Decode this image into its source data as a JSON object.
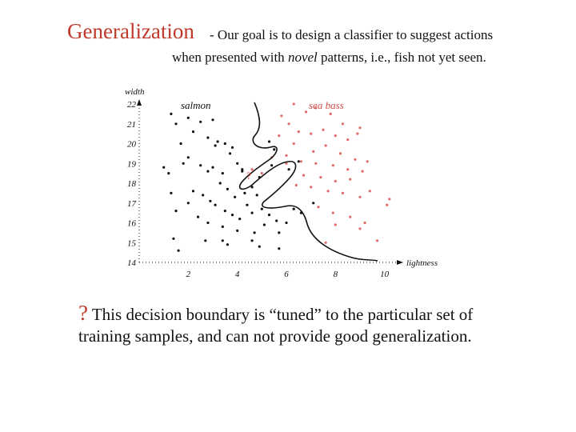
{
  "slide": {
    "title": "Generalization",
    "subtitle_line1": "- Our goal is to design a classifier to suggest actions",
    "subtitle_line2_pre": "when presented with ",
    "subtitle_line2_em": "novel",
    "subtitle_line2_post": " patterns, i.e., fish not yet seen.",
    "caption_mark": "?",
    "caption": " This decision boundary is “tuned” to the particular set of training samples, and can not provide good generalization."
  },
  "colors": {
    "title": "#c0392b",
    "seabass": "#e06b6b",
    "salmon": "#111111",
    "boundary": "#111111"
  },
  "chart_data": {
    "type": "scatter",
    "xlabel": "lightness",
    "ylabel": "width",
    "xlim": [
      0,
      10.5
    ],
    "ylim": [
      14,
      22
    ],
    "x_ticks": [
      "2",
      "4",
      "6",
      "8",
      "10"
    ],
    "y_ticks": [
      "14",
      "15",
      "16",
      "17",
      "18",
      "19",
      "20",
      "21",
      "22"
    ],
    "series": [
      {
        "name": "salmon",
        "color": "#111111",
        "points": [
          [
            1.3,
            21.5
          ],
          [
            1.5,
            21.0
          ],
          [
            1.7,
            20.0
          ],
          [
            2.0,
            21.3
          ],
          [
            2.2,
            20.6
          ],
          [
            2.5,
            21.1
          ],
          [
            3.0,
            21.2
          ],
          [
            2.8,
            20.3
          ],
          [
            3.1,
            19.9
          ],
          [
            3.2,
            20.1
          ],
          [
            3.5,
            20.0
          ],
          [
            3.8,
            19.8
          ],
          [
            1.8,
            19.0
          ],
          [
            2.0,
            19.3
          ],
          [
            2.5,
            18.9
          ],
          [
            1.0,
            18.8
          ],
          [
            1.2,
            18.5
          ],
          [
            2.8,
            18.6
          ],
          [
            3.0,
            18.8
          ],
          [
            3.4,
            18.5
          ],
          [
            3.7,
            19.5
          ],
          [
            4.0,
            19.0
          ],
          [
            4.2,
            18.7
          ],
          [
            3.3,
            18.0
          ],
          [
            3.6,
            17.7
          ],
          [
            3.9,
            17.3
          ],
          [
            4.3,
            17.5
          ],
          [
            4.6,
            17.8
          ],
          [
            4.8,
            17.4
          ],
          [
            1.3,
            17.5
          ],
          [
            2.0,
            17.0
          ],
          [
            2.2,
            17.6
          ],
          [
            2.6,
            17.4
          ],
          [
            2.9,
            17.1
          ],
          [
            3.1,
            16.9
          ],
          [
            3.5,
            16.6
          ],
          [
            3.8,
            16.4
          ],
          [
            4.1,
            16.2
          ],
          [
            4.4,
            16.9
          ],
          [
            4.6,
            16.5
          ],
          [
            5.0,
            16.7
          ],
          [
            5.3,
            16.4
          ],
          [
            5.6,
            16.1
          ],
          [
            1.5,
            16.6
          ],
          [
            2.4,
            16.3
          ],
          [
            2.8,
            16.0
          ],
          [
            3.4,
            15.8
          ],
          [
            4.0,
            15.6
          ],
          [
            4.7,
            15.5
          ],
          [
            5.1,
            15.9
          ],
          [
            1.4,
            15.2
          ],
          [
            2.7,
            15.1
          ],
          [
            3.4,
            15.1
          ],
          [
            4.6,
            15.1
          ],
          [
            5.7,
            15.5
          ],
          [
            6.0,
            16.0
          ],
          [
            6.3,
            16.7
          ],
          [
            6.6,
            16.5
          ],
          [
            1.6,
            14.6
          ],
          [
            3.6,
            14.9
          ],
          [
            4.9,
            14.8
          ],
          [
            5.7,
            14.7
          ],
          [
            4.2,
            18.6
          ],
          [
            4.9,
            18.3
          ],
          [
            5.4,
            18.9
          ],
          [
            6.1,
            18.7
          ],
          [
            6.5,
            19.1
          ],
          [
            7.1,
            17.0
          ],
          [
            5.3,
            20.1
          ],
          [
            5.5,
            19.7
          ]
        ]
      },
      {
        "name": "sea bass",
        "color": "#e06b6b",
        "points": [
          [
            6.3,
            22.0
          ],
          [
            6.8,
            21.6
          ],
          [
            7.2,
            21.8
          ],
          [
            7.8,
            21.5
          ],
          [
            8.3,
            21.0
          ],
          [
            9.0,
            20.8
          ],
          [
            5.8,
            21.4
          ],
          [
            6.1,
            21.0
          ],
          [
            6.5,
            20.6
          ],
          [
            7.0,
            20.5
          ],
          [
            7.5,
            20.7
          ],
          [
            8.0,
            20.4
          ],
          [
            8.5,
            20.2
          ],
          [
            8.9,
            20.5
          ],
          [
            5.7,
            20.4
          ],
          [
            6.3,
            20.0
          ],
          [
            7.1,
            19.6
          ],
          [
            7.6,
            19.9
          ],
          [
            8.2,
            19.5
          ],
          [
            8.8,
            19.2
          ],
          [
            9.3,
            19.1
          ],
          [
            6.0,
            19.4
          ],
          [
            6.6,
            19.1
          ],
          [
            7.2,
            19.0
          ],
          [
            7.9,
            18.9
          ],
          [
            8.5,
            18.7
          ],
          [
            9.1,
            18.6
          ],
          [
            6.7,
            18.4
          ],
          [
            7.4,
            18.3
          ],
          [
            8.0,
            18.1
          ],
          [
            8.6,
            18.2
          ],
          [
            9.4,
            17.6
          ],
          [
            6.4,
            17.9
          ],
          [
            7.0,
            17.8
          ],
          [
            7.7,
            17.6
          ],
          [
            8.3,
            17.5
          ],
          [
            9.0,
            17.3
          ],
          [
            10.2,
            17.2
          ],
          [
            7.3,
            16.8
          ],
          [
            7.9,
            16.5
          ],
          [
            8.6,
            16.3
          ],
          [
            9.2,
            16.0
          ],
          [
            10.1,
            16.9
          ],
          [
            8.0,
            15.9
          ],
          [
            9.0,
            15.7
          ],
          [
            9.7,
            15.1
          ],
          [
            7.6,
            15.0
          ],
          [
            4.6,
            18.7
          ],
          [
            5.0,
            18.5
          ],
          [
            5.4,
            19.3
          ],
          [
            6.0,
            19.0
          ]
        ]
      }
    ],
    "annotations": [
      "salmon",
      "sea bass",
      "?"
    ]
  }
}
